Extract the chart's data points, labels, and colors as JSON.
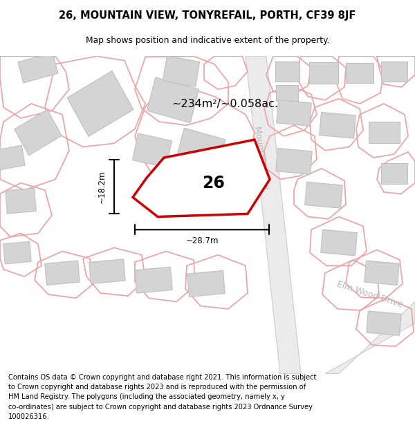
{
  "title_line1": "26, MOUNTAIN VIEW, TONYREFAIL, PORTH, CF39 8JF",
  "title_line2": "Map shows position and indicative extent of the property.",
  "footer": "Contains OS data © Crown copyright and database right 2021. This information is subject\nto Crown copyright and database rights 2023 and is reproduced with the permission of\nHM Land Registry. The polygons (including the associated geometry, namely x, y\nco-ordinates) are subject to Crown copyright and database rights 2023 Ordnance Survey\n100026316.",
  "map_bg": "#f7f6f5",
  "plot_color": "#cc0000",
  "surround_color": "#f0a0a0",
  "building_color": "#d4d4d4",
  "building_edge": "#c0c0c0",
  "road_color": "#d8d8d8",
  "road_label_color": "#aaaaaa",
  "area_text": "~234m²/~0.058ac.",
  "dim_h": "~18.2m",
  "dim_w": "~28.7m",
  "plot_number": "26"
}
